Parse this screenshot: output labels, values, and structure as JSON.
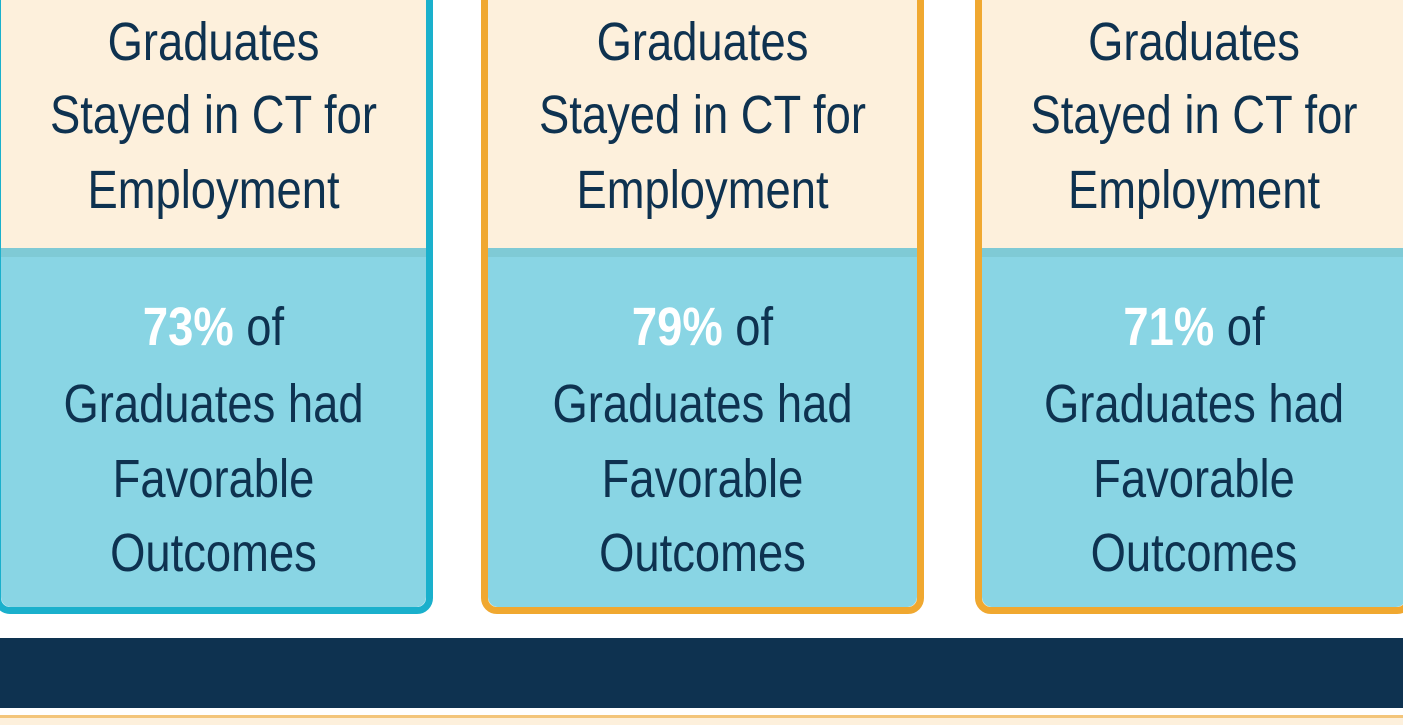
{
  "cards": [
    {
      "top_lines": [
        "Graduates",
        "Stayed in CT for",
        "Employment"
      ],
      "percent": "73%",
      "percent_suffix": "of",
      "bottom_lines": [
        "Graduates had",
        "Favorable",
        "Outcomes"
      ]
    },
    {
      "top_lines": [
        "Graduates",
        "Stayed in CT for",
        "Employment"
      ],
      "percent": "79%",
      "percent_suffix": "of",
      "bottom_lines": [
        "Graduates had",
        "Favorable",
        "Outcomes"
      ]
    },
    {
      "top_lines": [
        "Graduates",
        "Stayed in CT for",
        "Employment"
      ],
      "percent": "71%",
      "percent_suffix": "of",
      "bottom_lines": [
        "Graduates had",
        "Favorable",
        "Outcomes"
      ]
    }
  ]
}
